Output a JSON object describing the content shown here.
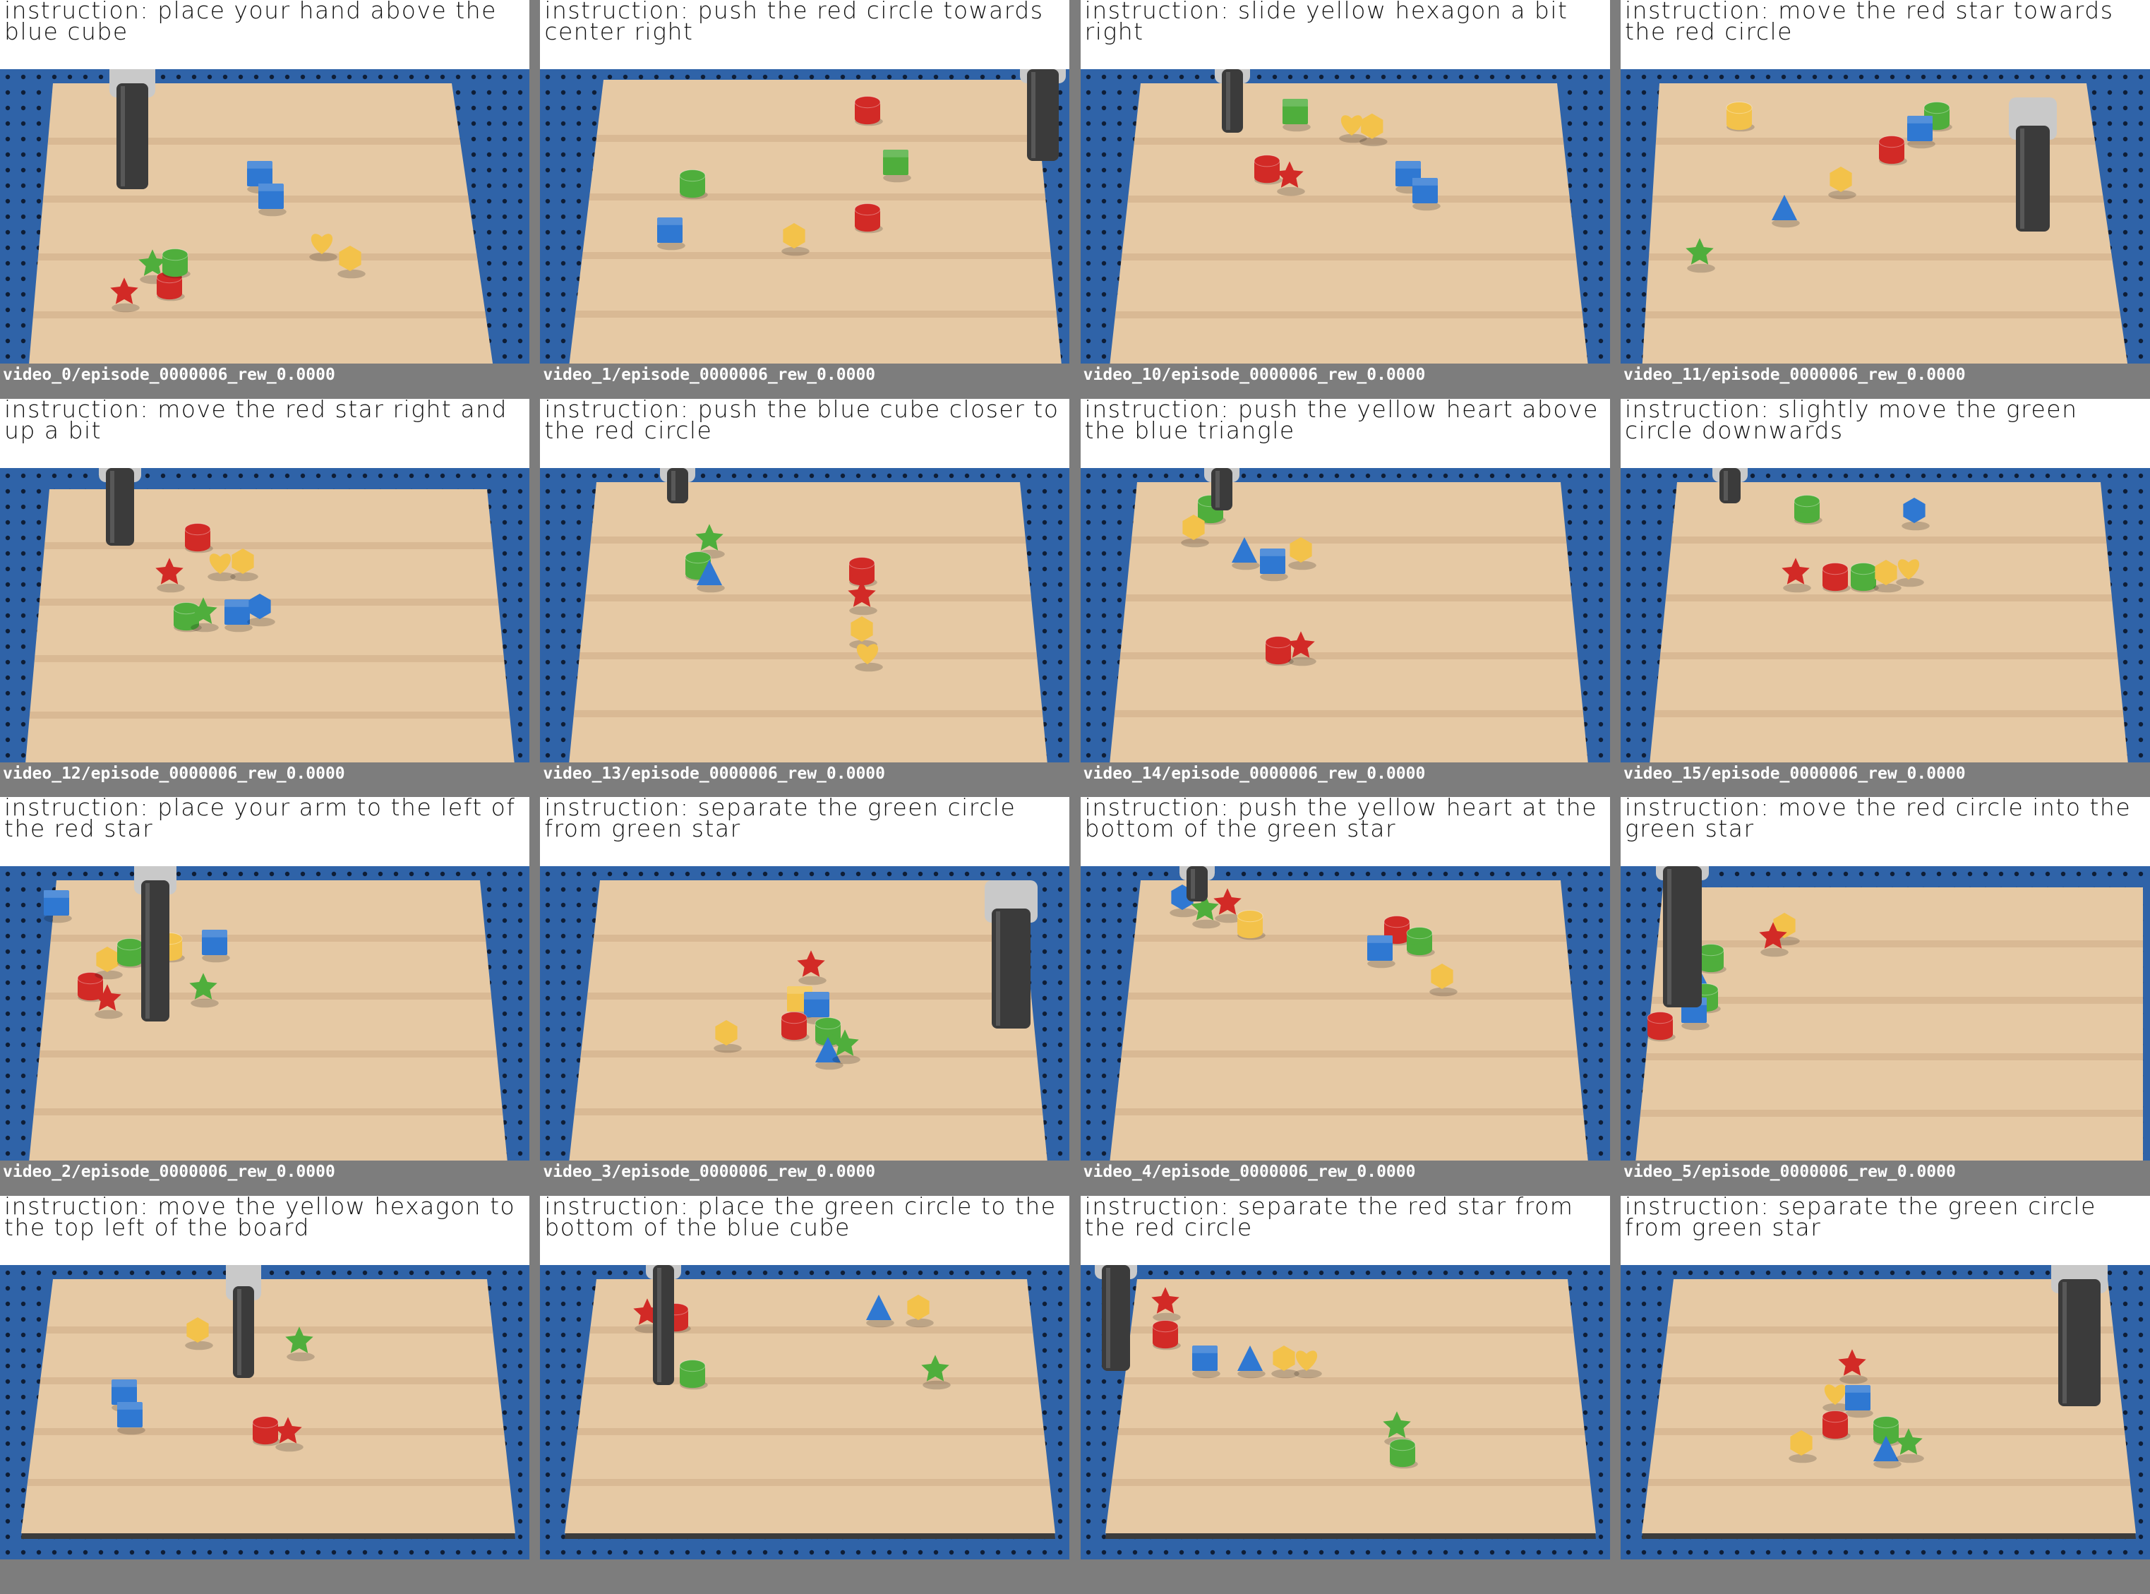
{
  "tiles": [
    {
      "instruction": "instruction: place your hand above the blue cube",
      "caption": "video_0/episode_0000006_rew_0.0000"
    },
    {
      "instruction": "instruction: push the red circle towards center right",
      "caption": "video_1/episode_0000006_rew_0.0000"
    },
    {
      "instruction": "instruction: slide yellow hexagon a bit right",
      "caption": "video_10/episode_0000006_rew_0.0000"
    },
    {
      "instruction": "instruction: move the red star towards the red circle",
      "caption": "video_11/episode_0000006_rew_0.0000"
    },
    {
      "instruction": "instruction: move the red star right and up a bit",
      "caption": "video_12/episode_0000006_rew_0.0000"
    },
    {
      "instruction": "instruction: push the blue cube closer to the red circle",
      "caption": "video_13/episode_0000006_rew_0.0000"
    },
    {
      "instruction": "instruction: push the yellow heart above the blue triangle",
      "caption": "video_14/episode_0000006_rew_0.0000"
    },
    {
      "instruction": "instruction: slightly move the green circle downwards",
      "caption": "video_15/episode_0000006_rew_0.0000"
    },
    {
      "instruction": "instruction: place your arm to the left of the red star",
      "caption": "video_2/episode_0000006_rew_0.0000"
    },
    {
      "instruction": "instruction: separate the green circle from green star",
      "caption": "video_3/episode_0000006_rew_0.0000"
    },
    {
      "instruction": "instruction: push the yellow heart at the bottom of the green star",
      "caption": "video_4/episode_0000006_rew_0.0000"
    },
    {
      "instruction": "instruction: move the red circle into the green star",
      "caption": "video_5/episode_0000006_rew_0.0000"
    },
    {
      "instruction": "instruction: move the yellow hexagon to the top left of the board",
      "caption": ""
    },
    {
      "instruction": "instruction: place the green circle to the bottom of the blue cube",
      "caption": ""
    },
    {
      "instruction": "instruction: separate the red star from the red circle",
      "caption": ""
    },
    {
      "instruction": "instruction: separate the green circle from green star",
      "caption": ""
    }
  ],
  "colors": {
    "background": "#7d7d7d",
    "table_blue": "#2f63a8",
    "board": "#e6c9a4",
    "red": "#d22a26",
    "green": "#4fae3c",
    "blue": "#2f78d2",
    "yellow": "#f3c24a",
    "gripper": "#3b3b3b"
  }
}
